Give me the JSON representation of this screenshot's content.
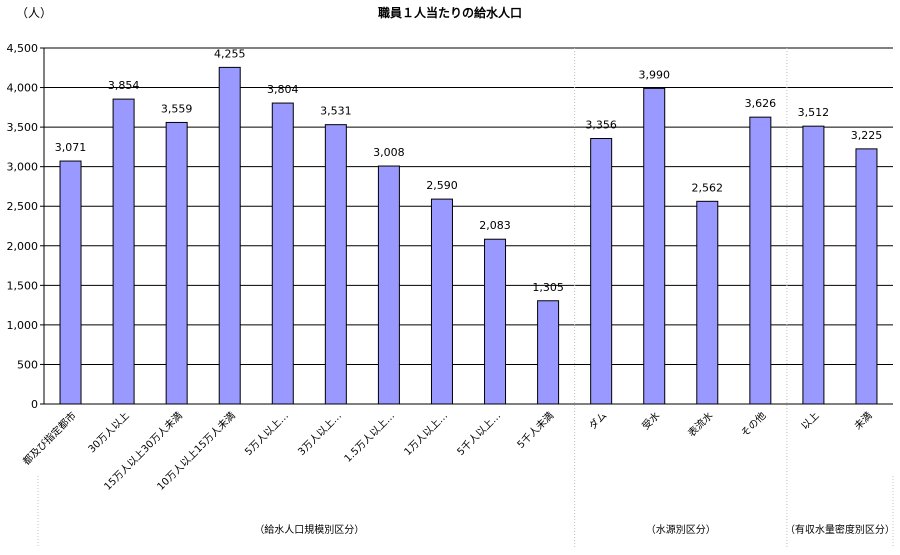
{
  "chart_data": {
    "type": "bar",
    "title": "職員１人当たりの給水人口",
    "unit_label": "（人）",
    "ylim": [
      0,
      4500
    ],
    "y_ticks": [
      "0",
      "500",
      "1,000",
      "1,500",
      "2,000",
      "2,500",
      "3,000",
      "3,500",
      "4,000",
      "4,500"
    ],
    "categories": [
      "都及び指定都市",
      "30万人以上",
      "15万人以上30万人未満",
      "10万人以上15万人未満",
      "5万人以上…",
      "3万人以上…",
      "1.5万人以上…",
      "1万人以上…",
      "5千人以上…",
      "5千人未満",
      "ダム",
      "受水",
      "表流水",
      "その他",
      "以上",
      "未満"
    ],
    "values": [
      3071,
      3854,
      3559,
      4255,
      3804,
      3531,
      3008,
      2590,
      2083,
      1305,
      3356,
      3990,
      2562,
      3626,
      3512,
      3225
    ],
    "value_labels": [
      "3,071",
      "3,854",
      "3,559",
      "4,255",
      "3,804",
      "3,531",
      "3,008",
      "2,590",
      "2,083",
      "1,305",
      "3,356",
      "3,990",
      "2,562",
      "3,626",
      "3,512",
      "3,225"
    ],
    "groups": [
      {
        "label": "（給水人口規模別区分）",
        "count": 10
      },
      {
        "label": "（水源別区分）",
        "count": 4
      },
      {
        "label": "（有収水量密度別区分）",
        "count": 2
      }
    ],
    "grid": true,
    "colors": {
      "bar_fill": "#9999ff",
      "bar_stroke": "#000000",
      "grid": "#000000",
      "group_divider": "#c0c0c0"
    }
  }
}
